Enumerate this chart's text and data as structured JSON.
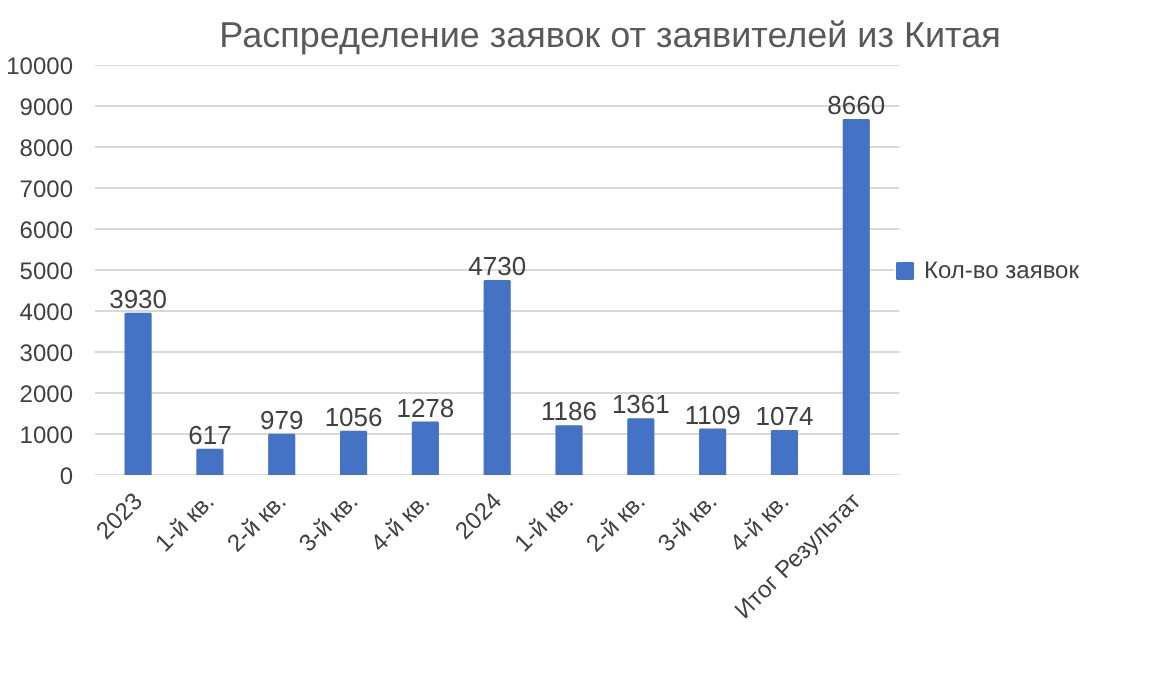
{
  "chart_data": {
    "type": "bar",
    "title": "Распределение заявок от заявителей из Китая",
    "categories": [
      "2023",
      "1-й кв.",
      "2-й кв.",
      "3-й кв.",
      "4-й кв.",
      "2024",
      "1-й кв.",
      "2-й кв.",
      "3-й кв.",
      "4-й кв.",
      "Итог Результат"
    ],
    "series": [
      {
        "name": "Кол-во заявок",
        "color": "#4472c4",
        "values": [
          3930,
          617,
          979,
          1056,
          1278,
          4730,
          1186,
          1361,
          1109,
          1074,
          8660
        ]
      }
    ],
    "ylim": [
      0,
      10000
    ],
    "yticks": [
      0,
      1000,
      2000,
      3000,
      4000,
      5000,
      6000,
      7000,
      8000,
      9000,
      10000
    ],
    "grid": "y",
    "legend": "right",
    "data_labels": true
  }
}
